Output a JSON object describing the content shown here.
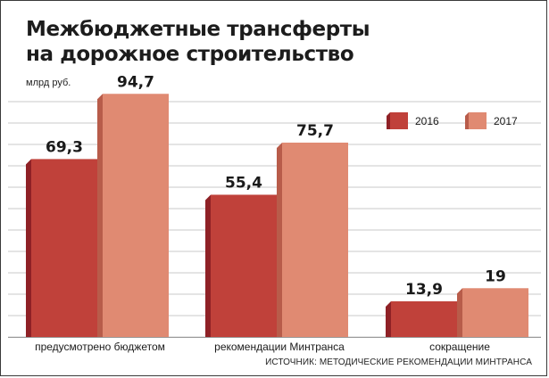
{
  "header": {
    "title_line1": "Межбюджетные трансферты",
    "title_line2": "на дорожное строительство"
  },
  "unit_label": "млрд руб.",
  "source": "ИСТОЧНИК: МЕТОДИЧЕСКИЕ РЕКОМЕНДАЦИИ МИНТРАНСА",
  "chart_data": {
    "type": "bar",
    "title": "Межбюджетные трансферты на дорожное строительство",
    "ylabel": "млрд руб.",
    "categories": [
      "предусмотрено бюджетом",
      "рекомендации Минтранса",
      "сокращение"
    ],
    "series": [
      {
        "name": "2016",
        "values": [
          69.3,
          55.4,
          13.9
        ],
        "labels": [
          "69,3",
          "55,4",
          "13,9"
        ],
        "color": "#c0413a",
        "shade": "#8f2126"
      },
      {
        "name": "2017",
        "values": [
          94.7,
          75.7,
          19
        ],
        "labels": [
          "94,7",
          "75,7",
          "19"
        ],
        "color": "#e08a72",
        "shade": "#b85c4a"
      }
    ],
    "ylim": [
      0,
      100
    ],
    "grid": true,
    "legend": "top-right"
  }
}
